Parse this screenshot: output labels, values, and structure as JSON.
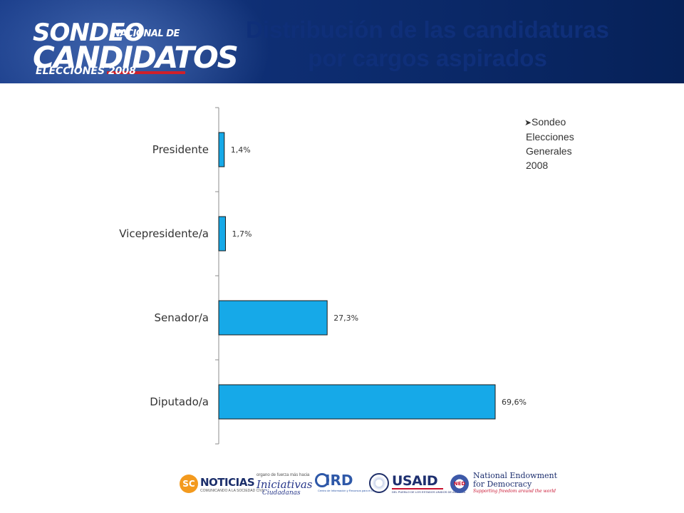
{
  "header": {
    "logo": {
      "line1": "SONDEO",
      "line1_small": "NACIONAL DE",
      "line2": "CANDIDATOS",
      "line3": "ELECCIONES 2008"
    },
    "title_line1": "Distribución de las candidaturas",
    "title_line2": "por cargos aspirados",
    "colors": {
      "band": "#0f2f79",
      "title": "#0f2f79"
    }
  },
  "note": {
    "bullet_icon": "arrow-bullet-icon",
    "lines": [
      "Sondeo",
      "Elecciones",
      "Generales",
      "2008"
    ]
  },
  "chart_data": {
    "type": "bar",
    "orientation": "horizontal",
    "categories": [
      "Presidente",
      "Vicepresidente/a",
      "Senador/a",
      "Diputado/a"
    ],
    "values": [
      1.4,
      1.7,
      27.3,
      69.6
    ],
    "value_labels": [
      "1,4%",
      "1,7%",
      "27,3%",
      "69,6%"
    ],
    "unit": "%",
    "xlim": [
      0,
      70
    ],
    "grid": false,
    "bar_color": "#16a9e8",
    "bar_edge_color": "#1a1a1a"
  },
  "footer": {
    "logos": [
      {
        "name": "SC NOTICIAS",
        "mark": "SC",
        "text": "NOTICIAS",
        "sub": "COMUNICANDO A LA SOCIEDAD CIVIL"
      },
      {
        "name": "Iniciativas Ciudadanas",
        "small": "organo de fuerza más hacia",
        "big": "Iniciativas",
        "sub": "Ciudadanas"
      },
      {
        "name": "IRD",
        "text": "IRD",
        "sub": "Centro de Información y Recursos para el Desarrollo"
      },
      {
        "name": "USAID",
        "text": "USAID",
        "sub": "DEL PUEBLO DE LOS ESTADOS UNIDOS DE AMÉRICA"
      },
      {
        "name": "National Endowment for Democracy",
        "mark": "NED",
        "line1": "National Endowment",
        "line2": "for Democracy",
        "tag": "Supporting freedom around the world"
      }
    ]
  }
}
